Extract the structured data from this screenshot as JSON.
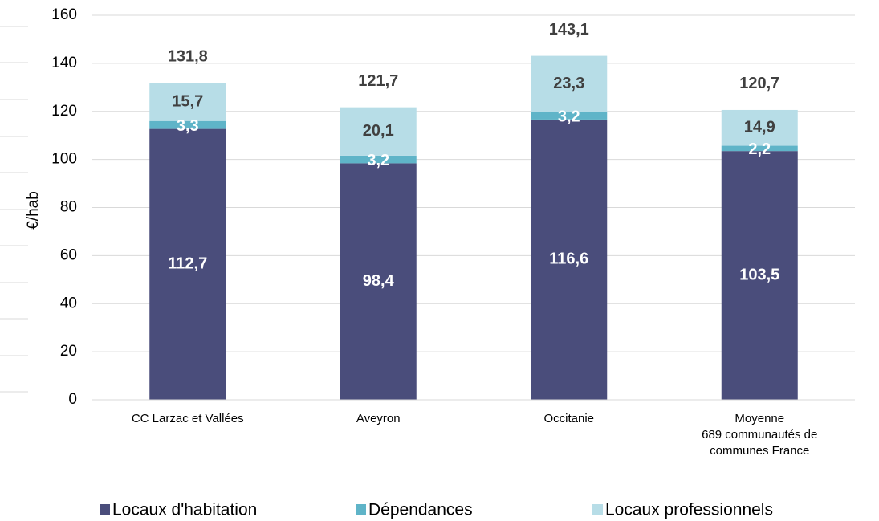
{
  "chart_data": {
    "type": "stacked_bar",
    "y_label": "€/hab",
    "categories": [
      "CC Larzac et Vallées",
      "Aveyron",
      "Occitanie",
      "Moyenne\n689 communautés de\ncommunes France"
    ],
    "series": [
      {
        "name": "Locaux d'habitation",
        "color": "#4a4d7b",
        "label_color": "#ffffff",
        "values": [
          112.7,
          98.4,
          116.6,
          103.5
        ],
        "value_labels": [
          "112,7",
          "98,4",
          "116,6",
          "103,5"
        ]
      },
      {
        "name": "Dépendances",
        "color": "#5fb4c8",
        "label_color": "#ffffff",
        "values": [
          3.3,
          3.2,
          3.2,
          2.2
        ],
        "value_labels": [
          "3,3",
          "3,2",
          "3,2",
          "2,2"
        ]
      },
      {
        "name": "Locaux professionnels",
        "color": "#b7dde7",
        "label_color": "#404040",
        "values": [
          15.7,
          20.1,
          23.3,
          14.9
        ],
        "value_labels": [
          "15,7",
          "20,1",
          "23,3",
          "14,9"
        ]
      }
    ],
    "totals": [
      131.8,
      121.7,
      143.1,
      120.7
    ],
    "total_labels": [
      "131,8",
      "121,7",
      "143,1",
      "120,7"
    ],
    "ylim": [
      0,
      160
    ],
    "yticks": [
      0,
      20,
      40,
      60,
      80,
      100,
      120,
      140,
      160
    ],
    "grid": true,
    "legend": "bottom"
  }
}
